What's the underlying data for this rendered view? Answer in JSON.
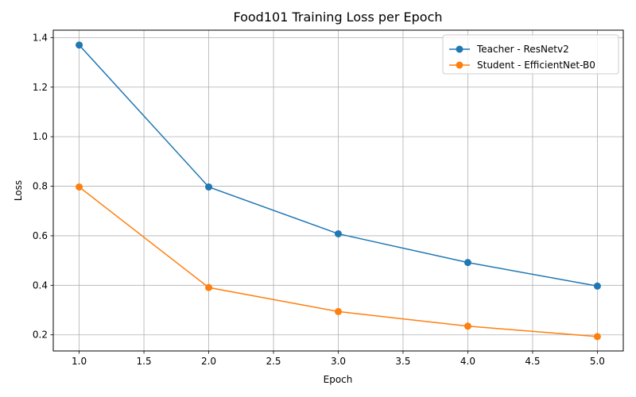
{
  "chart_data": {
    "type": "line",
    "title": "Food101 Training Loss per Epoch",
    "xlabel": "Epoch",
    "ylabel": "Loss",
    "x": [
      1.0,
      2.0,
      3.0,
      4.0,
      5.0
    ],
    "xlim": [
      0.8,
      5.2
    ],
    "ylim": [
      0.135,
      1.43
    ],
    "xticks": [
      1.0,
      1.5,
      2.0,
      2.5,
      3.0,
      3.5,
      4.0,
      4.5,
      5.0
    ],
    "xtick_labels": [
      "1.0",
      "1.5",
      "2.0",
      "2.5",
      "3.0",
      "3.5",
      "4.0",
      "4.5",
      "5.0"
    ],
    "yticks": [
      0.2,
      0.4,
      0.6,
      0.8,
      1.0,
      1.2,
      1.4
    ],
    "ytick_labels": [
      "0.2",
      "0.4",
      "0.6",
      "0.8",
      "1.0",
      "1.2",
      "1.4"
    ],
    "grid": true,
    "legend_position": "top-right",
    "series": [
      {
        "name": "Teacher - ResNetv2",
        "color": "#1f77b4",
        "values": [
          1.37,
          0.797,
          0.608,
          0.492,
          0.397
        ]
      },
      {
        "name": "Student - EfficientNet-B0",
        "color": "#ff7f0e",
        "values": [
          0.797,
          0.391,
          0.294,
          0.235,
          0.193
        ]
      }
    ]
  }
}
